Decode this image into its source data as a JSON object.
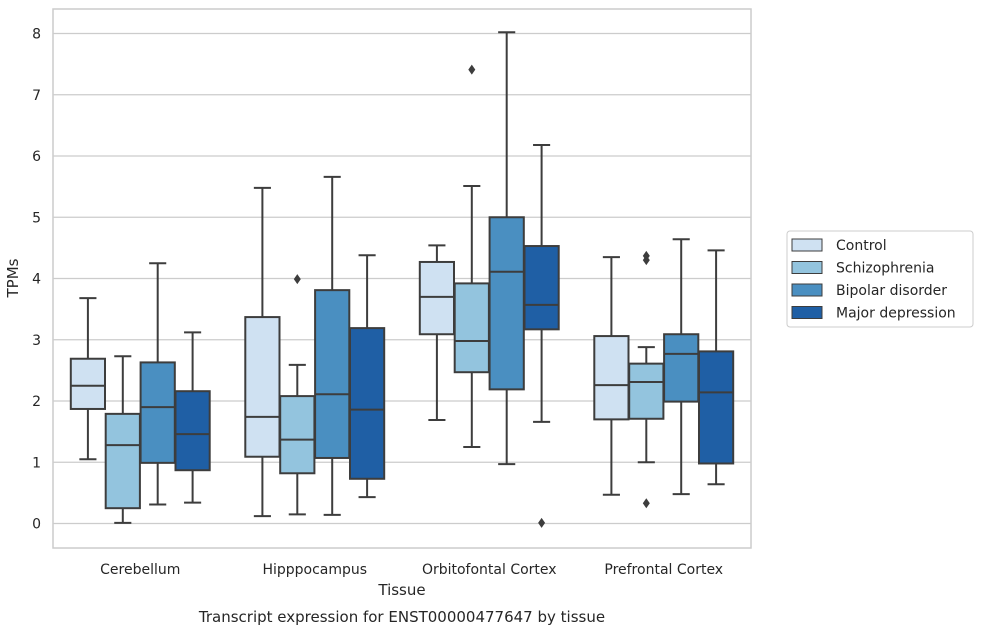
{
  "chart_data": {
    "type": "boxplot",
    "xlabel": "Tissue",
    "ylabel": "TPMs",
    "caption": "Transcript expression for ENST00000477647 by tissue",
    "ylim": [
      -0.4,
      8.4
    ],
    "yticks": [
      "0",
      "1",
      "2",
      "3",
      "4",
      "5",
      "6",
      "7",
      "8"
    ],
    "grid": "horizontal",
    "legend_placement": "right",
    "categories": [
      "Cerebellum",
      "Hipppocampus",
      "Orbitofontal Cortex",
      "Prefrontal Cortex"
    ],
    "series": [
      {
        "name": "Control",
        "color": "#cfe1f2",
        "boxes": [
          {
            "whislo": 1.05,
            "q1": 1.87,
            "med": 2.25,
            "q3": 2.69,
            "whishi": 3.68,
            "fliers": []
          },
          {
            "whislo": 0.12,
            "q1": 1.09,
            "med": 1.74,
            "q3": 3.37,
            "whishi": 5.48,
            "fliers": []
          },
          {
            "whislo": 1.69,
            "q1": 3.09,
            "med": 3.7,
            "q3": 4.27,
            "whishi": 4.54,
            "fliers": []
          },
          {
            "whislo": 0.47,
            "q1": 1.7,
            "med": 2.26,
            "q3": 3.06,
            "whishi": 4.35,
            "fliers": []
          }
        ]
      },
      {
        "name": "Schizophrenia",
        "color": "#93c4de",
        "boxes": [
          {
            "whislo": 0.01,
            "q1": 0.25,
            "med": 1.28,
            "q3": 1.79,
            "whishi": 2.73,
            "fliers": []
          },
          {
            "whislo": 0.15,
            "q1": 0.82,
            "med": 1.37,
            "q3": 2.08,
            "whishi": 2.59,
            "fliers": [
              3.99
            ]
          },
          {
            "whislo": 1.25,
            "q1": 2.47,
            "med": 2.98,
            "q3": 3.92,
            "whishi": 5.51,
            "fliers": [
              7.41
            ]
          },
          {
            "whislo": 1.0,
            "q1": 1.71,
            "med": 2.31,
            "q3": 2.61,
            "whishi": 2.88,
            "fliers": [
              4.3,
              4.37,
              0.33
            ]
          }
        ]
      },
      {
        "name": "Bipolar disorder",
        "color": "#4a8fc1",
        "boxes": [
          {
            "whislo": 0.31,
            "q1": 0.99,
            "med": 1.9,
            "q3": 2.63,
            "whishi": 4.25,
            "fliers": []
          },
          {
            "whislo": 0.14,
            "q1": 1.07,
            "med": 2.11,
            "q3": 3.81,
            "whishi": 5.66,
            "fliers": []
          },
          {
            "whislo": 0.97,
            "q1": 2.19,
            "med": 4.11,
            "q3": 5.0,
            "whishi": 8.02,
            "fliers": []
          },
          {
            "whislo": 0.48,
            "q1": 1.99,
            "med": 2.77,
            "q3": 3.09,
            "whishi": 4.64,
            "fliers": []
          }
        ]
      },
      {
        "name": "Major depression",
        "color": "#1f5fa5",
        "boxes": [
          {
            "whislo": 0.34,
            "q1": 0.87,
            "med": 1.46,
            "q3": 2.16,
            "whishi": 3.12,
            "fliers": []
          },
          {
            "whislo": 0.43,
            "q1": 0.73,
            "med": 1.86,
            "q3": 3.19,
            "whishi": 4.38,
            "fliers": []
          },
          {
            "whislo": 1.66,
            "q1": 3.17,
            "med": 3.57,
            "q3": 4.53,
            "whishi": 6.18,
            "fliers": [
              0.01
            ]
          },
          {
            "whislo": 0.64,
            "q1": 0.98,
            "med": 2.14,
            "q3": 2.81,
            "whishi": 4.46,
            "fliers": []
          }
        ]
      }
    ]
  }
}
